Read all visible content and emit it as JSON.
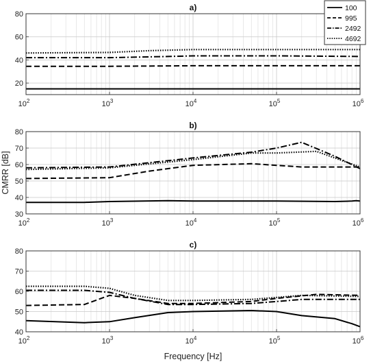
{
  "chart_data": [
    {
      "type": "line",
      "title": "a)",
      "xscale": "log",
      "xlim": [
        100,
        1000000
      ],
      "ylim": [
        10,
        80
      ],
      "yticks": [
        20,
        40,
        60,
        80
      ],
      "ylabel": "",
      "xlabel": "",
      "grid": true,
      "legend_position": "top-right",
      "series": [
        {
          "name": "100",
          "style": "solid",
          "x": [
            100,
            1000000
          ],
          "y": [
            15,
            15
          ]
        },
        {
          "name": "995",
          "style": "dashed",
          "x": [
            100,
            1000,
            10000,
            100000,
            1000000
          ],
          "y": [
            34.5,
            34.5,
            35,
            35,
            35
          ]
        },
        {
          "name": "2492",
          "style": "dashdot",
          "x": [
            100,
            1000,
            5000,
            10000,
            100000,
            1000000
          ],
          "y": [
            42,
            42,
            43,
            43.5,
            43.5,
            43
          ]
        },
        {
          "name": "4692",
          "style": "dotted",
          "x": [
            100,
            1000,
            3000,
            10000,
            100000,
            1000000
          ],
          "y": [
            46,
            46.5,
            48,
            49,
            49,
            49
          ]
        }
      ]
    },
    {
      "type": "line",
      "title": "b)",
      "xscale": "log",
      "xlim": [
        100,
        1000000
      ],
      "ylim": [
        30,
        80
      ],
      "yticks": [
        30,
        40,
        50,
        60,
        70,
        80
      ],
      "ylabel": "CMRR [dB]",
      "xlabel": "",
      "grid": true,
      "series": [
        {
          "name": "100",
          "style": "solid",
          "x": [
            100,
            500,
            1000,
            5000,
            10000,
            100000,
            500000,
            800000,
            900000,
            1000000
          ],
          "y": [
            37,
            37,
            37.5,
            38,
            37.8,
            37.8,
            37.5,
            37.8,
            38,
            37.8
          ]
        },
        {
          "name": "995",
          "style": "dashed",
          "x": [
            100,
            1000,
            3000,
            10000,
            50000,
            100000,
            200000,
            1000000
          ],
          "y": [
            51.5,
            52,
            56,
            59.5,
            60.5,
            59.5,
            58.5,
            58.5
          ]
        },
        {
          "name": "2492",
          "style": "dashdot",
          "x": [
            100,
            1000,
            10000,
            50000,
            100000,
            200000,
            500000,
            1000000
          ],
          "y": [
            58,
            58.5,
            64,
            67.5,
            70,
            73.5,
            65,
            57.5
          ]
        },
        {
          "name": "4692",
          "style": "dotted",
          "x": [
            100,
            1000,
            10000,
            50000,
            100000,
            300000,
            1000000
          ],
          "y": [
            57,
            58,
            63,
            67,
            67,
            68,
            58.5
          ]
        }
      ]
    },
    {
      "type": "line",
      "title": "c)",
      "xscale": "log",
      "xlim": [
        100,
        1000000
      ],
      "ylim": [
        40,
        80
      ],
      "yticks": [
        40,
        50,
        60,
        70,
        80
      ],
      "ylabel": "",
      "xlabel": "Frequency [Hz]",
      "grid": true,
      "series": [
        {
          "name": "100",
          "style": "solid",
          "x": [
            100,
            500,
            1000,
            2000,
            5000,
            10000,
            50000,
            100000,
            200000,
            500000,
            800000,
            1000000
          ],
          "y": [
            45.5,
            44.5,
            45,
            47,
            49.5,
            50,
            50.5,
            50,
            48,
            46.5,
            44,
            42.5
          ]
        },
        {
          "name": "995",
          "style": "dashed",
          "x": [
            100,
            500,
            1000,
            2000,
            5000,
            10000,
            50000,
            100000,
            300000,
            1000000
          ],
          "y": [
            53,
            53.5,
            58,
            56.5,
            54,
            54,
            55,
            56.5,
            58.5,
            58
          ]
        },
        {
          "name": "2492",
          "style": "dashdot",
          "x": [
            100,
            500,
            1000,
            2000,
            5000,
            10000,
            50000,
            100000,
            200000,
            1000000
          ],
          "y": [
            60.5,
            60.5,
            59.5,
            56.5,
            53.5,
            53.5,
            54,
            55,
            56,
            56
          ]
        },
        {
          "name": "4692",
          "style": "dotted",
          "x": [
            100,
            500,
            1000,
            2000,
            5000,
            10000,
            50000,
            100000,
            200000,
            1000000
          ],
          "y": [
            62.5,
            62.5,
            61.5,
            58,
            55.5,
            55.5,
            56,
            57,
            58,
            57.5
          ]
        }
      ]
    }
  ],
  "legend": [
    "100",
    "995",
    "2492",
    "4692"
  ],
  "x_tick_base": "10",
  "x_tick_exponents": [
    "2",
    "3",
    "4",
    "5",
    "6"
  ]
}
